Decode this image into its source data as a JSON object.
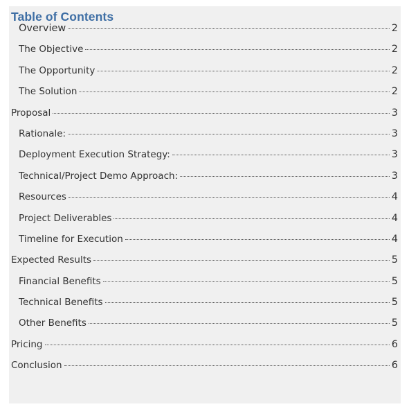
{
  "toc": {
    "title": "Table of Contents",
    "entries": [
      {
        "text": "Overview",
        "page": "2",
        "level": 2
      },
      {
        "text": "The Objective",
        "page": "2",
        "level": 2
      },
      {
        "text": "The Opportunity",
        "page": "2",
        "level": 2
      },
      {
        "text": "The Solution",
        "page": "2",
        "level": 2
      },
      {
        "text": "Proposal",
        "page": "3",
        "level": 1
      },
      {
        "text": "Rationale:",
        "page": "3",
        "level": 2
      },
      {
        "text": "Deployment Execution Strategy:",
        "page": "3",
        "level": 2
      },
      {
        "text": "Technical/Project Demo Approach:",
        "page": "3",
        "level": 2
      },
      {
        "text": "Resources",
        "page": "4",
        "level": 2
      },
      {
        "text": "Project Deliverables",
        "page": "4",
        "level": 2
      },
      {
        "text": "Timeline for Execution",
        "page": "4",
        "level": 2
      },
      {
        "text": "Expected Results",
        "page": "5",
        "level": 1
      },
      {
        "text": "Financial Benefits",
        "page": "5",
        "level": 2
      },
      {
        "text": "Technical Benefits",
        "page": "5",
        "level": 2
      },
      {
        "text": "Other Benefits",
        "page": "5",
        "level": 2
      },
      {
        "text": "Pricing",
        "page": "6",
        "level": 1
      },
      {
        "text": "Conclusion",
        "page": "6",
        "level": 1
      }
    ]
  },
  "colors": {
    "title": "#3f6fa5",
    "text": "#333333",
    "page_background": "#f0f0f0"
  }
}
